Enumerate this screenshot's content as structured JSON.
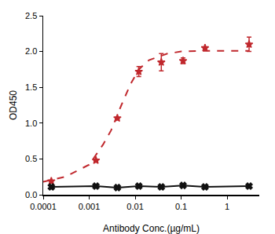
{
  "chart_data": {
    "type": "scatter",
    "x_label": "Antibody Conc.(µg/mL)",
    "y_label": "OD450",
    "log": "x",
    "grid": false,
    "xlim": [
      0.0001,
      5
    ],
    "xticks": [
      0.0001,
      0.001,
      0.01,
      0.1,
      1
    ],
    "ylim": [
      0,
      2.5
    ],
    "yticks": [
      {
        "value": 0,
        "label": "0.0"
      },
      0.5,
      {
        "value": 1,
        "label": "1.0"
      },
      1.5,
      {
        "value": 2,
        "label": "2.0"
      },
      2.5
    ],
    "series": [
      {
        "type": "line",
        "color": "#c0282d",
        "line_style": "dashed",
        "marker": "none",
        "x": [
          0.0001,
          0.0003,
          0.001,
          0.002,
          0.003,
          0.005,
          0.008,
          0.012,
          0.02,
          0.05,
          0.1,
          0.3,
          1,
          3
        ],
        "values": [
          0.18,
          0.25,
          0.42,
          0.7,
          0.9,
          1.25,
          1.55,
          1.75,
          1.88,
          1.97,
          2.0,
          2.01,
          2.01,
          2.01
        ]
      },
      {
        "type": "scatter",
        "color": "#c0282d",
        "marker": "star",
        "x": [
          0.00015,
          0.0014,
          0.0041,
          0.012,
          0.037,
          0.11,
          0.33,
          3
        ],
        "values": [
          0.19,
          0.48,
          1.07,
          1.72,
          1.85,
          1.87,
          2.05,
          2.1
        ],
        "errors": [
          0.01,
          0.01,
          0.01,
          0.07,
          0.12,
          0.04,
          0.01,
          0.1
        ]
      },
      {
        "type": "line",
        "color": "#111111",
        "line_style": "solid",
        "marker": "x",
        "x": [
          0.00015,
          0.0014,
          0.0041,
          0.012,
          0.037,
          0.11,
          0.33,
          3
        ],
        "values": [
          0.11,
          0.12,
          0.1,
          0.12,
          0.11,
          0.13,
          0.11,
          0.12
        ]
      }
    ]
  }
}
